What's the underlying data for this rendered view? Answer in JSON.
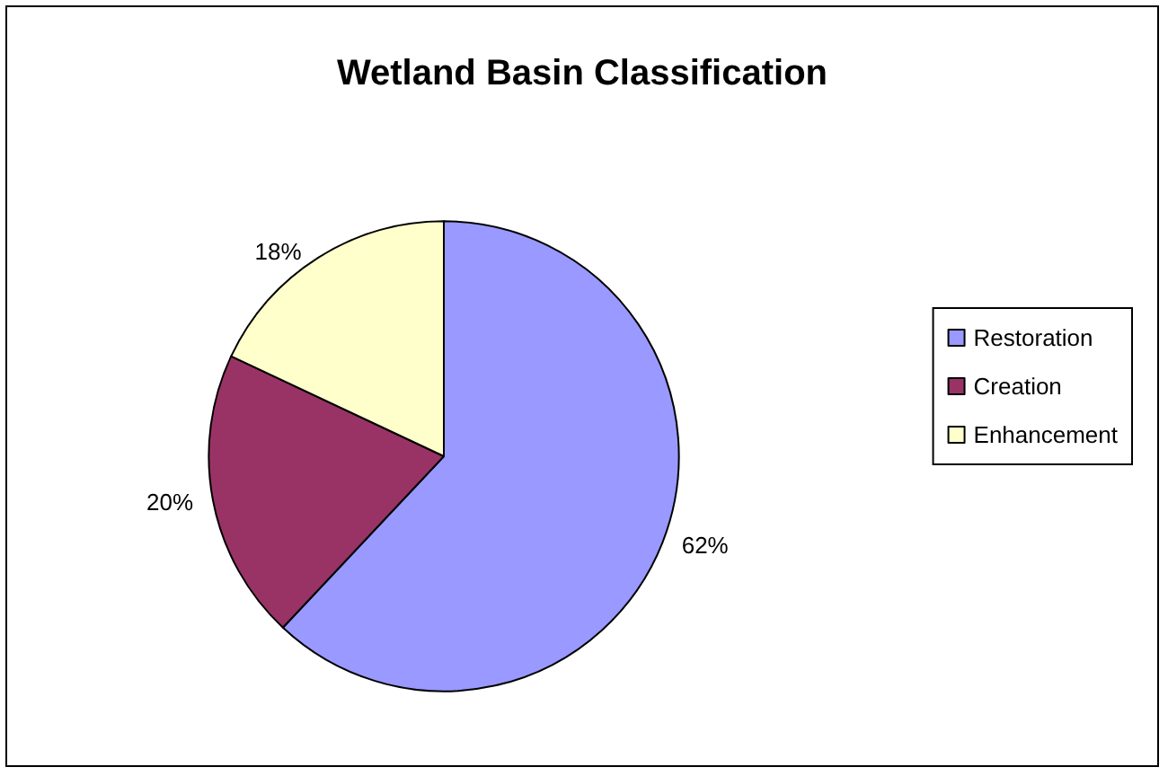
{
  "chart_data": {
    "type": "pie",
    "title": "Wetland Basin Classification",
    "categories": [
      "Restoration",
      "Creation",
      "Enhancement"
    ],
    "values": [
      62,
      20,
      18
    ],
    "colors": [
      "#9999ff",
      "#993366",
      "#ffffcc"
    ],
    "value_labels": [
      "62%",
      "20%",
      "18%"
    ],
    "legend": "right"
  }
}
